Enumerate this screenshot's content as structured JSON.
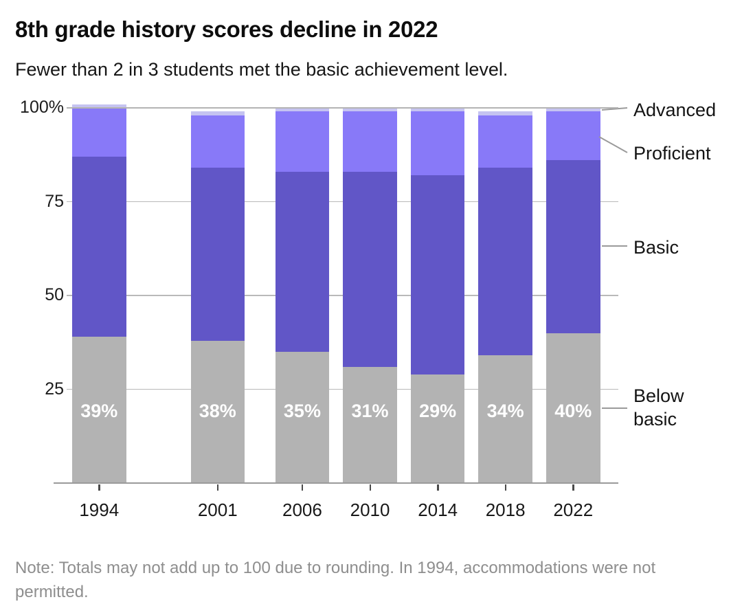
{
  "header": {
    "title": "8th grade history scores decline in 2022",
    "subtitle": "Fewer than 2 in 3 students met the basic achievement level."
  },
  "chart_data": {
    "type": "bar",
    "stacked": true,
    "units": "percent of students",
    "title": "8th grade history scores decline in 2022",
    "subtitle": "Fewer than 2 in 3 students met the basic achievement level.",
    "categories": [
      "1994",
      "2001",
      "2006",
      "2010",
      "2014",
      "2018",
      "2022"
    ],
    "series": [
      {
        "name": "Below basic",
        "color": "#b3b3b3",
        "values": [
          39,
          38,
          35,
          31,
          29,
          34,
          40
        ],
        "data_labels": [
          "39%",
          "38%",
          "35%",
          "31%",
          "29%",
          "34%",
          "40%"
        ]
      },
      {
        "name": "Basic",
        "color": "#6156c7",
        "values": [
          48,
          46,
          48,
          52,
          53,
          50,
          46
        ]
      },
      {
        "name": "Proficient",
        "color": "#8879f8",
        "values": [
          13,
          14,
          16,
          16,
          17,
          14,
          13
        ]
      },
      {
        "name": "Advanced",
        "color": "#c5c3f1",
        "values": [
          1,
          1,
          1,
          1,
          1,
          1,
          1
        ]
      }
    ],
    "y_axis": {
      "range": [
        0,
        100
      ],
      "ticks": [
        {
          "value": 100,
          "label": "100%"
        },
        {
          "value": 75,
          "label": "75"
        },
        {
          "value": 50,
          "label": "50"
        },
        {
          "value": 25,
          "label": "25"
        }
      ]
    },
    "legend": {
      "position": "right",
      "entries": [
        "Advanced",
        "Proficient",
        "Basic",
        "Below basic"
      ]
    },
    "grid": true
  },
  "note": {
    "text": "Note: Totals may not add up to 100 due to rounding. In 1994, accommodations were not permitted."
  },
  "colors": {
    "below_basic": "#b3b3b3",
    "basic": "#6156c7",
    "proficient": "#8879f8",
    "advanced": "#c5c3f1",
    "gridline": "#b9b9b9",
    "axis": "#9a9a9a",
    "bar_label_text": "#ffffff",
    "note_text": "#8e8e8e"
  }
}
